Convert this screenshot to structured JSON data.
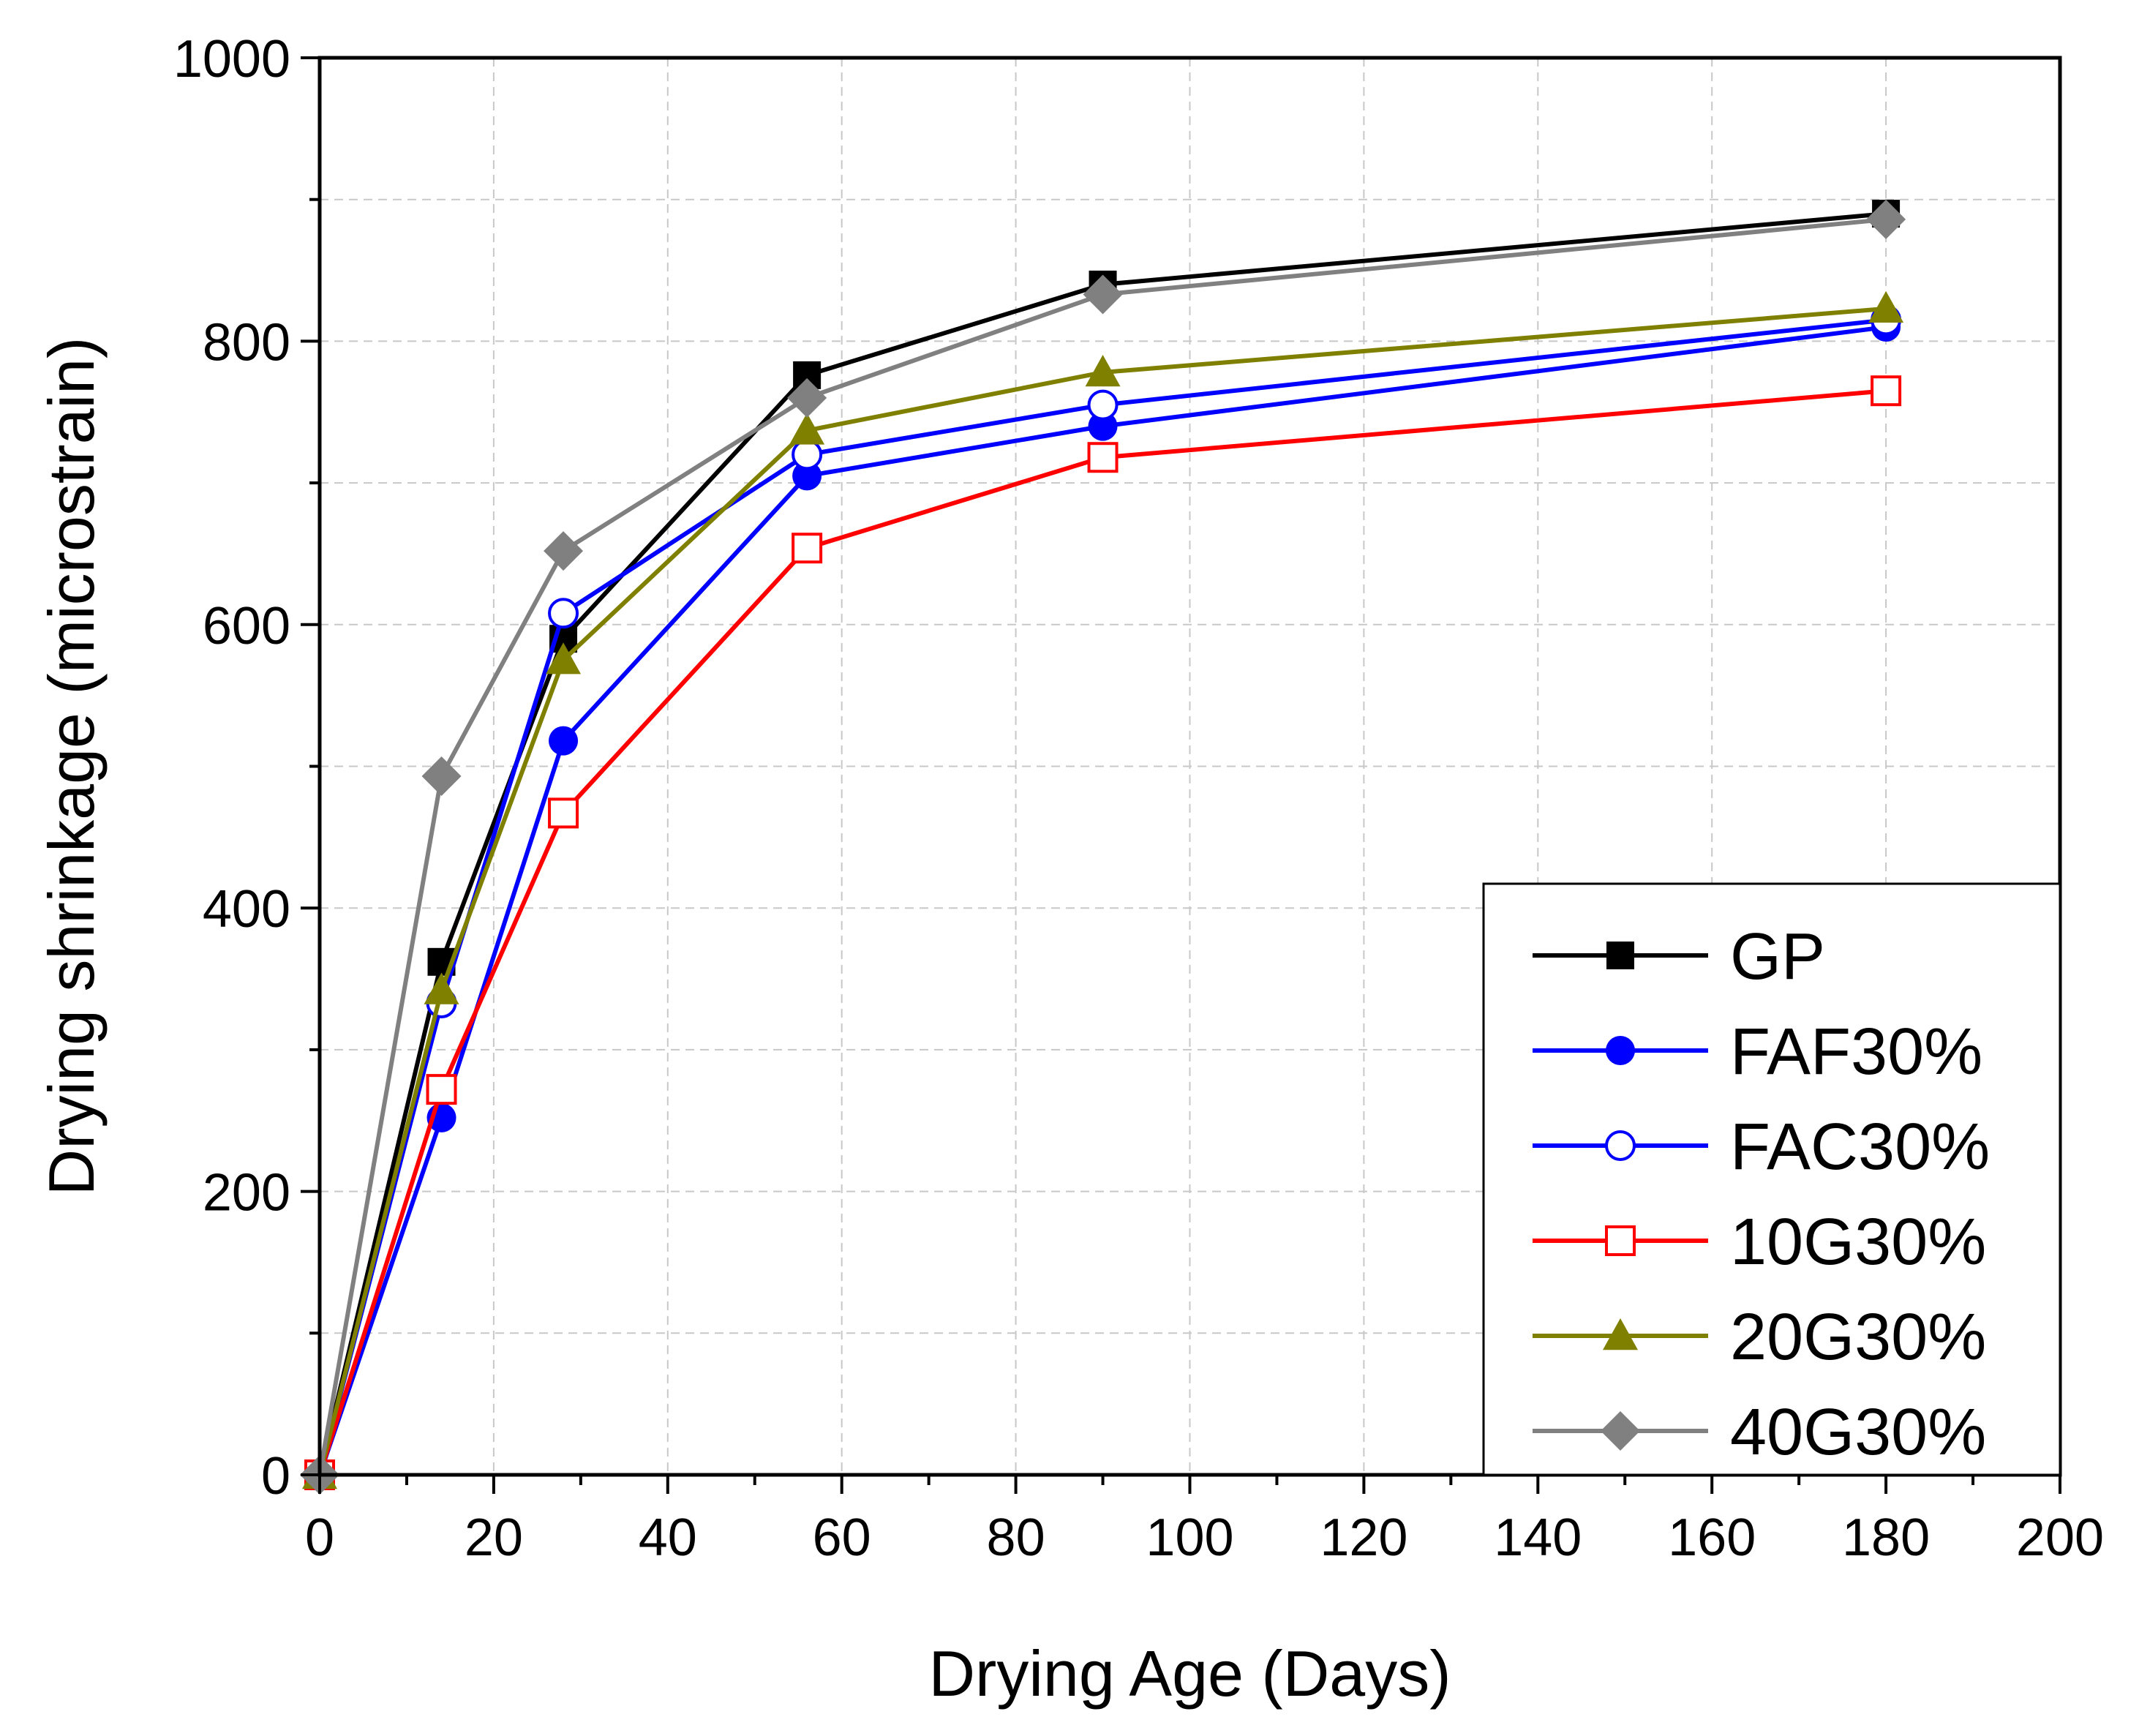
{
  "chart_data": {
    "type": "line",
    "xlabel": "Drying Age (Days)",
    "ylabel": "Drying shrinkage (microstrain)",
    "xlim": [
      0,
      200
    ],
    "ylim": [
      0,
      1000
    ],
    "x_ticks": [
      "0",
      "20",
      "40",
      "60",
      "80",
      "100",
      "120",
      "140",
      "160",
      "180",
      "200"
    ],
    "y_ticks": [
      "0",
      "200",
      "400",
      "600",
      "800",
      "1000"
    ],
    "grid": true,
    "legend_position": "bottom-right",
    "x": [
      0,
      14,
      28,
      56,
      90,
      180
    ],
    "series": [
      {
        "name": "GP",
        "color": "#000000",
        "marker": "square-filled",
        "values": [
          0,
          362,
          590,
          776,
          840,
          890
        ]
      },
      {
        "name": "FAF30%",
        "color": "#0000ff",
        "marker": "circle-filled",
        "values": [
          0,
          252,
          518,
          705,
          740,
          810
        ]
      },
      {
        "name": "FAC30%",
        "color": "#0000ff",
        "marker": "circle-open",
        "values": [
          0,
          333,
          608,
          720,
          755,
          815
        ]
      },
      {
        "name": "10G30%",
        "color": "#ff0000",
        "marker": "square-open",
        "values": [
          0,
          272,
          467,
          654,
          718,
          765
        ]
      },
      {
        "name": "20G30%",
        "color": "#808000",
        "marker": "triangle-filled",
        "values": [
          0,
          342,
          575,
          737,
          778,
          823
        ]
      },
      {
        "name": "40G30%",
        "color": "#808080",
        "marker": "diamond-filled",
        "values": [
          0,
          493,
          652,
          760,
          833,
          886
        ]
      }
    ]
  }
}
